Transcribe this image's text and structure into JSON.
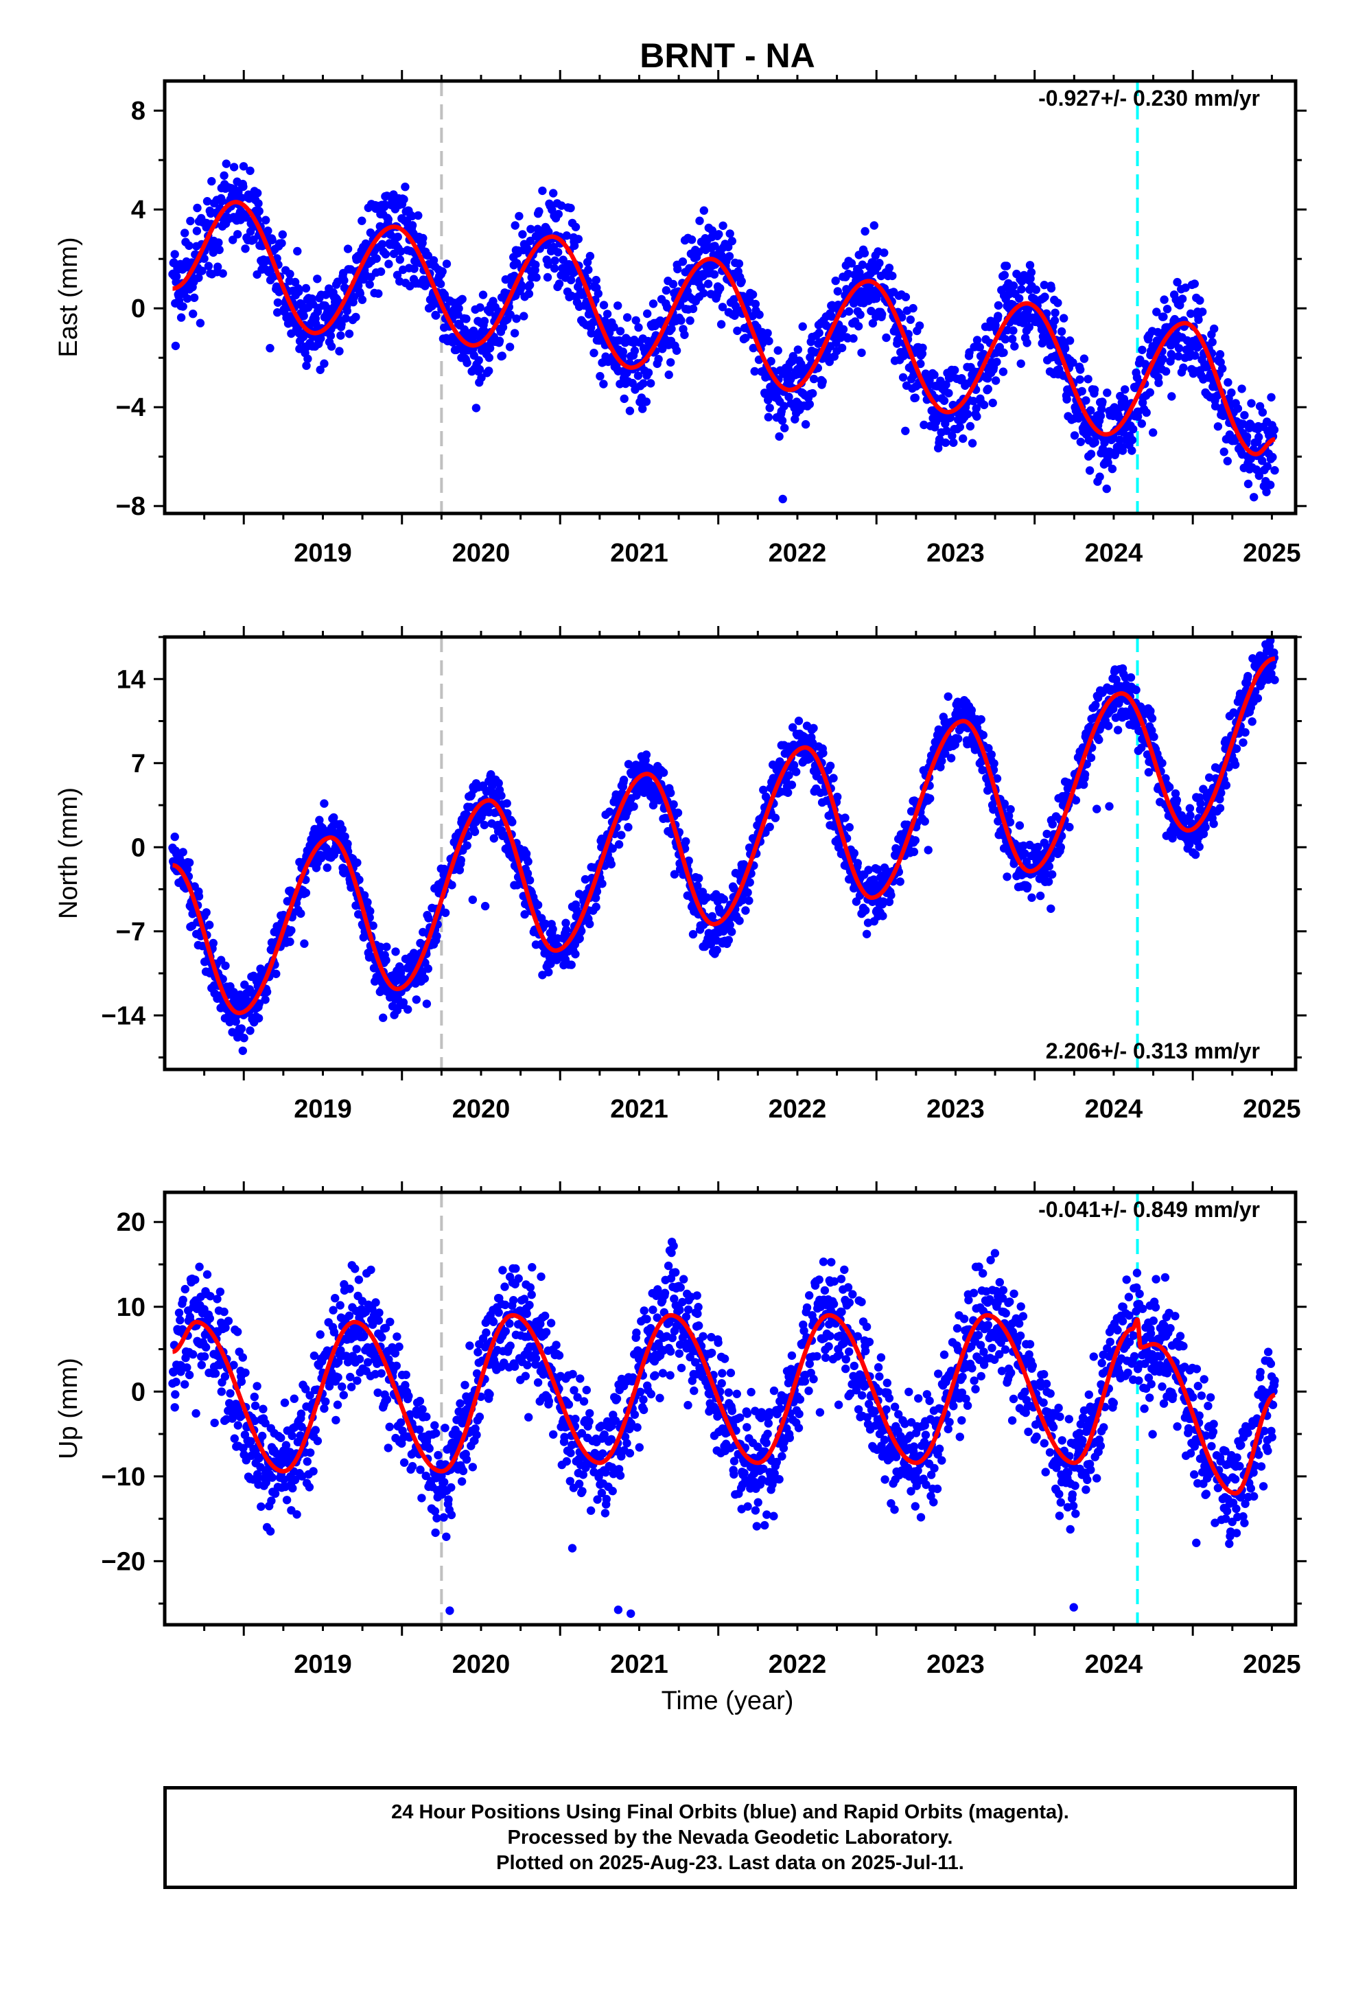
{
  "chart_data": {
    "title": "BRNT - NA",
    "type": "scatter",
    "x_range": [
      2018.5,
      2025.65
    ],
    "x_ticks": [
      2019,
      2020,
      2021,
      2022,
      2023,
      2024,
      2025
    ],
    "xlabel": "Time (year)",
    "markers": {
      "gray_dashed_x": 2020.25,
      "cyan_dashed_x": 2024.65
    },
    "colors": {
      "data_points": "#0000ff",
      "model_line": "#ff0000",
      "gray_marker": "#c0c0c0",
      "cyan_marker": "#00ffff"
    },
    "panels": [
      {
        "name": "east",
        "ylabel": "East (mm)",
        "ylim": [
          -8.3,
          9.2
        ],
        "yticks": [
          8,
          4,
          0,
          -4,
          -8
        ],
        "ytick_labels": [
          "8",
          "4",
          "0",
          "−4",
          "−8"
        ],
        "rate_text": "-0.927+/- 0.230 mm/yr",
        "rate_position": "top-right",
        "model": {
          "intercept": 0.9,
          "slope": -0.927,
          "amplitude": 2.6,
          "phase": 2018.72,
          "step_at": 2024.65,
          "step": 0.0
        },
        "scatter_sd": 0.9,
        "model_knots": [
          [
            2018.55,
            0.8
          ],
          [
            2018.95,
            4.3
          ],
          [
            2019.45,
            -1.0
          ],
          [
            2019.95,
            3.3
          ],
          [
            2020.45,
            -1.5
          ],
          [
            2020.95,
            2.9
          ],
          [
            2021.45,
            -2.4
          ],
          [
            2021.95,
            2.0
          ],
          [
            2022.45,
            -3.3
          ],
          [
            2022.95,
            1.1
          ],
          [
            2023.45,
            -4.2
          ],
          [
            2023.95,
            0.2
          ],
          [
            2024.45,
            -5.1
          ],
          [
            2024.95,
            -0.6
          ],
          [
            2025.4,
            -5.9
          ],
          [
            2025.52,
            -5.3
          ]
        ]
      },
      {
        "name": "north",
        "ylabel": "North (mm)",
        "ylim": [
          -18.5,
          17.5
        ],
        "yticks": [
          14,
          7,
          0,
          -7,
          -14
        ],
        "ytick_labels": [
          "14",
          "7",
          "0",
          "−7",
          "−14"
        ],
        "rate_text": "2.206+/- 0.313 mm/yr",
        "rate_position": "bottom-right",
        "scatter_sd": 1.2,
        "model_knots": [
          [
            2018.55,
            -1.5
          ],
          [
            2018.97,
            -13.8
          ],
          [
            2019.55,
            0.8
          ],
          [
            2019.97,
            -11.8
          ],
          [
            2020.55,
            3.9
          ],
          [
            2020.97,
            -8.6
          ],
          [
            2021.55,
            6.1
          ],
          [
            2021.97,
            -6.4
          ],
          [
            2022.55,
            8.3
          ],
          [
            2022.97,
            -4.2
          ],
          [
            2023.55,
            10.5
          ],
          [
            2023.97,
            -2.0
          ],
          [
            2024.55,
            12.8
          ],
          [
            2024.97,
            1.4
          ],
          [
            2025.52,
            15.7
          ]
        ]
      },
      {
        "name": "up",
        "ylabel": "Up (mm)",
        "ylim": [
          -27.5,
          23.5
        ],
        "yticks": [
          20,
          10,
          0,
          -10,
          -20
        ],
        "ytick_labels": [
          "20",
          "10",
          "0",
          "−10",
          "−20"
        ],
        "rate_text": "-0.041+/- 0.849 mm/yr",
        "rate_position": "top-right",
        "scatter_sd": 3.4,
        "model_knots": [
          [
            2018.55,
            4.7
          ],
          [
            2018.7,
            8.2
          ],
          [
            2019.25,
            -9.4
          ],
          [
            2019.7,
            8.2
          ],
          [
            2020.25,
            -9.4
          ],
          [
            2020.7,
            9.0
          ],
          [
            2021.25,
            -8.4
          ],
          [
            2021.7,
            9.0
          ],
          [
            2022.25,
            -8.4
          ],
          [
            2022.7,
            9.0
          ],
          [
            2023.25,
            -8.4
          ],
          [
            2023.7,
            9.0
          ],
          [
            2024.25,
            -8.4
          ],
          [
            2024.62,
            7.4
          ],
          [
            2024.65,
            8.5
          ],
          [
            2024.67,
            5.2
          ],
          [
            2024.75,
            5.6
          ],
          [
            2025.27,
            -12.0
          ],
          [
            2025.52,
            -0.4
          ]
        ]
      }
    ]
  },
  "footer": {
    "line1": "24 Hour Positions Using Final Orbits (blue) and Rapid Orbits (magenta).",
    "line2": "Processed by the Nevada Geodetic Laboratory.",
    "line3": "Plotted on 2025-Aug-23. Last data on 2025-Jul-11."
  }
}
